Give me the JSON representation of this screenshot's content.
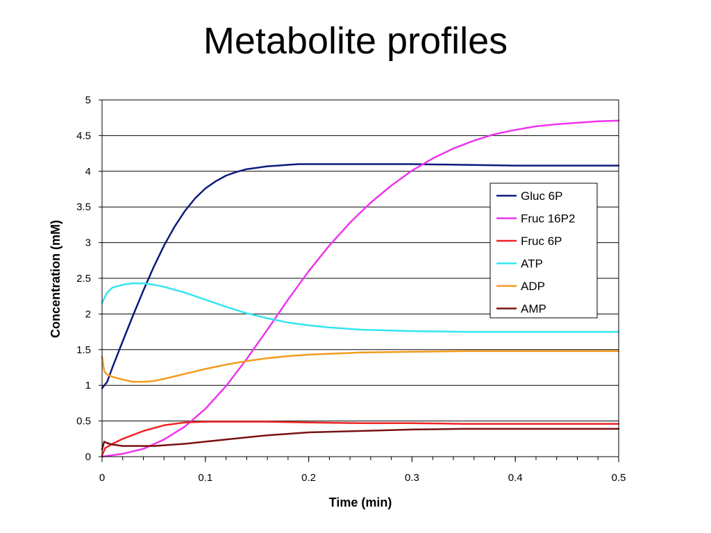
{
  "slide": {
    "title": "Metabolite profiles"
  },
  "chart_data": {
    "type": "line",
    "title": "",
    "xlabel": "Time (min)",
    "ylabel": "Concentration (mM)",
    "xlim": [
      0,
      0.5
    ],
    "ylim": [
      0,
      5
    ],
    "x_ticks": [
      0,
      0.1,
      0.2,
      0.3,
      0.4,
      0.5
    ],
    "y_ticks": [
      0,
      0.5,
      1,
      1.5,
      2,
      2.5,
      3,
      3.5,
      4,
      4.5,
      5
    ],
    "x_tick_labels": [
      "0",
      "0.1",
      "0.2",
      "0.3",
      "0.4",
      "0.5"
    ],
    "y_tick_labels": [
      "0",
      "0.5",
      "1",
      "1.5",
      "2",
      "2.5",
      "3",
      "3.5",
      "4",
      "4.5",
      "5"
    ],
    "grid": "horizontal",
    "legend_position": "right",
    "series": [
      {
        "name": "Gluc 6P",
        "color": "#0c1a7a",
        "x": [
          0,
          0.005,
          0.01,
          0.02,
          0.03,
          0.04,
          0.05,
          0.06,
          0.07,
          0.08,
          0.09,
          0.1,
          0.11,
          0.12,
          0.13,
          0.14,
          0.15,
          0.16,
          0.17,
          0.18,
          0.19,
          0.2,
          0.22,
          0.25,
          0.3,
          0.35,
          0.4,
          0.45,
          0.5
        ],
        "y": [
          0.96,
          1.05,
          1.25,
          1.62,
          1.98,
          2.33,
          2.66,
          2.96,
          3.22,
          3.44,
          3.62,
          3.76,
          3.86,
          3.94,
          3.99,
          4.03,
          4.05,
          4.07,
          4.08,
          4.09,
          4.1,
          4.1,
          4.1,
          4.1,
          4.1,
          4.09,
          4.08,
          4.08,
          4.08
        ]
      },
      {
        "name": "Fruc 16P2",
        "color": "#ee33ee",
        "x": [
          0,
          0.02,
          0.04,
          0.06,
          0.08,
          0.1,
          0.12,
          0.14,
          0.16,
          0.18,
          0.2,
          0.22,
          0.24,
          0.26,
          0.28,
          0.3,
          0.32,
          0.34,
          0.36,
          0.38,
          0.4,
          0.42,
          0.44,
          0.46,
          0.48,
          0.5
        ],
        "y": [
          0.0,
          0.04,
          0.11,
          0.24,
          0.42,
          0.67,
          0.99,
          1.37,
          1.78,
          2.2,
          2.6,
          2.96,
          3.28,
          3.56,
          3.8,
          4.01,
          4.18,
          4.32,
          4.43,
          4.52,
          4.58,
          4.63,
          4.66,
          4.68,
          4.7,
          4.71
        ]
      },
      {
        "name": "Fruc 6P",
        "color": "#ee2222",
        "x": [
          0,
          0.003,
          0.01,
          0.02,
          0.04,
          0.06,
          0.08,
          0.1,
          0.12,
          0.14,
          0.16,
          0.2,
          0.25,
          0.3,
          0.35,
          0.4,
          0.45,
          0.5
        ],
        "y": [
          0.02,
          0.12,
          0.18,
          0.25,
          0.36,
          0.44,
          0.48,
          0.49,
          0.49,
          0.49,
          0.49,
          0.48,
          0.47,
          0.47,
          0.46,
          0.46,
          0.46,
          0.46
        ]
      },
      {
        "name": "ATP",
        "color": "#33e5f0",
        "x": [
          0,
          0.005,
          0.01,
          0.02,
          0.03,
          0.04,
          0.05,
          0.06,
          0.08,
          0.1,
          0.12,
          0.14,
          0.16,
          0.18,
          0.2,
          0.22,
          0.25,
          0.3,
          0.35,
          0.4,
          0.45,
          0.5
        ],
        "y": [
          2.16,
          2.3,
          2.37,
          2.41,
          2.43,
          2.43,
          2.41,
          2.38,
          2.3,
          2.2,
          2.1,
          2.01,
          1.94,
          1.88,
          1.84,
          1.81,
          1.78,
          1.76,
          1.75,
          1.75,
          1.75,
          1.75
        ]
      },
      {
        "name": "ADP",
        "color": "#f59a1b",
        "x": [
          0,
          0.002,
          0.005,
          0.01,
          0.02,
          0.03,
          0.04,
          0.05,
          0.06,
          0.08,
          0.1,
          0.12,
          0.14,
          0.16,
          0.18,
          0.2,
          0.25,
          0.3,
          0.35,
          0.4,
          0.45,
          0.5
        ],
        "y": [
          1.4,
          1.2,
          1.15,
          1.12,
          1.08,
          1.05,
          1.05,
          1.06,
          1.09,
          1.16,
          1.23,
          1.29,
          1.34,
          1.38,
          1.41,
          1.43,
          1.46,
          1.47,
          1.48,
          1.48,
          1.48,
          1.48
        ]
      },
      {
        "name": "AMP",
        "color": "#7a1010",
        "x": [
          0,
          0.002,
          0.005,
          0.01,
          0.02,
          0.03,
          0.04,
          0.05,
          0.06,
          0.08,
          0.1,
          0.12,
          0.14,
          0.16,
          0.18,
          0.2,
          0.25,
          0.3,
          0.35,
          0.4,
          0.45,
          0.5
        ],
        "y": [
          0.1,
          0.21,
          0.19,
          0.17,
          0.15,
          0.15,
          0.15,
          0.15,
          0.16,
          0.18,
          0.21,
          0.24,
          0.27,
          0.3,
          0.32,
          0.34,
          0.36,
          0.38,
          0.39,
          0.39,
          0.39,
          0.39
        ]
      }
    ]
  }
}
